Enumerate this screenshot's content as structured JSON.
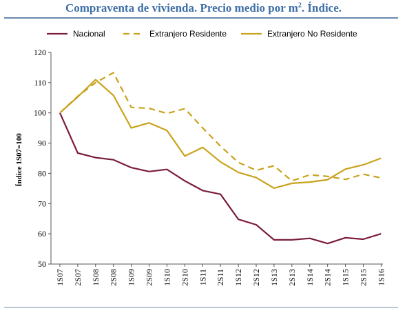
{
  "chart_data": {
    "type": "line",
    "title": "Compraventa de vivienda. Precio medio por m",
    "title_sup": "2",
    "title_suffix": ". Índice.",
    "ylabel": "Índice 1S07=100",
    "ylim": [
      50,
      120
    ],
    "yticks": [
      50,
      60,
      70,
      80,
      90,
      100,
      110,
      120
    ],
    "grid": false,
    "legend_placement": "top",
    "categories": [
      "1S07",
      "2S07",
      "1S08",
      "2S08",
      "1S09",
      "2S09",
      "1S10",
      "2S10",
      "1S11",
      "2S11",
      "1S12",
      "2S12",
      "1S13",
      "2S13",
      "1S14",
      "2S14",
      "1S15",
      "2S15",
      "1S16"
    ],
    "series": [
      {
        "name": "Nacional",
        "color": "#7b1c3a",
        "style": "solid",
        "values": [
          100,
          86.7,
          85.2,
          84.5,
          81.9,
          80.6,
          81.3,
          77.5,
          74.3,
          73.1,
          64.8,
          63.0,
          58.0,
          58.0,
          58.5,
          56.8,
          58.7,
          58.2,
          60.0
        ]
      },
      {
        "name": "Extranjero Residente",
        "color": "#c9a21c",
        "style": "dashed",
        "values": [
          100,
          105.5,
          110.0,
          113.3,
          101.8,
          101.5,
          99.8,
          101.4,
          95.0,
          89.0,
          83.6,
          81.0,
          82.5,
          77.5,
          79.5,
          79.0,
          78.0,
          79.7,
          78.5
        ]
      },
      {
        "name": "Extranjero No Residente",
        "color": "#c9a21c",
        "style": "solid",
        "values": [
          100,
          105.3,
          111.0,
          105.8,
          95.0,
          96.7,
          94.2,
          85.7,
          88.6,
          83.8,
          80.3,
          78.6,
          75.1,
          76.7,
          77.1,
          77.9,
          81.4,
          82.8,
          85.0
        ]
      }
    ]
  }
}
